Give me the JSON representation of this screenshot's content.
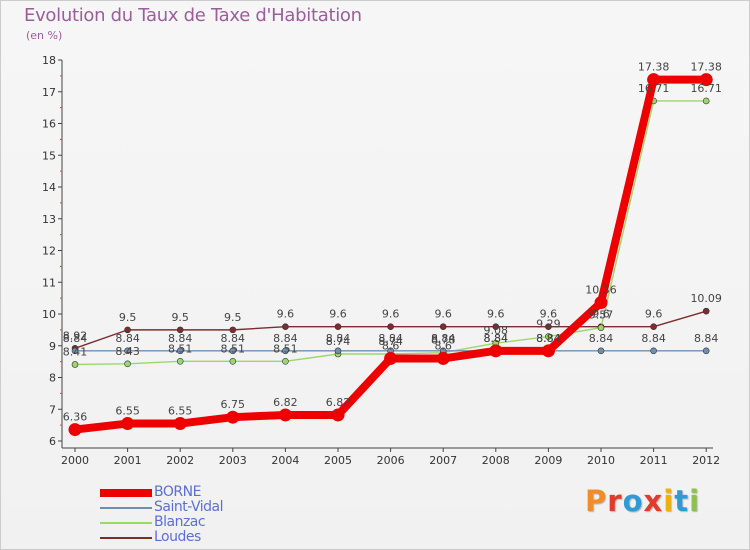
{
  "header": {
    "title": "Evolution du Taux de Taxe d'Habitation",
    "subtitle": "(en %)"
  },
  "logo": {
    "text": "Proxiti",
    "colors": [
      "#f28c28",
      "#e23b2e",
      "#2e9bd6",
      "#e23b2e",
      "#f2b100",
      "#2e9bd6",
      "#8bc34a"
    ]
  },
  "chart_data": {
    "type": "line",
    "title": "Evolution du Taux de Taxe d'Habitation",
    "ylabel": "(en %)",
    "xlabel": "",
    "ylim": [
      6,
      18
    ],
    "yticks": [
      6,
      7,
      8,
      9,
      10,
      11,
      12,
      13,
      14,
      15,
      16,
      17,
      18
    ],
    "categories": [
      "2000",
      "2001",
      "2002",
      "2003",
      "2004",
      "2005",
      "2006",
      "2007",
      "2008",
      "2009",
      "2010",
      "2011",
      "2012"
    ],
    "grid": false,
    "legend_position": "bottom-left",
    "series": [
      {
        "name": "Loudes",
        "color": "#7a2e2e",
        "style": "thin",
        "values": [
          8.92,
          9.5,
          9.5,
          9.5,
          9.6,
          9.6,
          9.6,
          9.6,
          9.6,
          9.6,
          9.6,
          9.6,
          10.09
        ],
        "labels": [
          "8.92",
          "9.5",
          "9.5",
          "9.5",
          "9.6",
          "9.6",
          "9.6",
          "9.6",
          "9.6",
          "9.6",
          "9.6",
          "9.6",
          "10.09"
        ]
      },
      {
        "name": "Blanzac",
        "color": "#9bd86a",
        "style": "thin",
        "values": [
          8.41,
          8.43,
          8.51,
          8.51,
          8.51,
          8.74,
          8.74,
          8.78,
          9.08,
          9.29,
          9.57,
          16.71,
          16.71
        ],
        "labels": [
          "8.41",
          "8.43",
          "8.51",
          "8.51",
          "8.51",
          "8.74",
          "8.74",
          "8.78",
          "9.08",
          "9.29",
          "9.57",
          "16.71",
          "16.71"
        ]
      },
      {
        "name": "Saint-Vidal",
        "color": "#6f8fb0",
        "style": "thin",
        "values": [
          8.84,
          8.84,
          8.84,
          8.84,
          8.84,
          8.84,
          8.84,
          8.84,
          8.84,
          8.84,
          8.84,
          8.84,
          8.84
        ],
        "labels": [
          "8.84",
          "8.84",
          "8.84",
          "8.84",
          "8.84",
          "8.84",
          "8.84",
          "8.84",
          "8.84",
          "8.84",
          "8.84",
          "8.84",
          "8.84"
        ]
      },
      {
        "name": "BORNE",
        "color": "#ee0000",
        "style": "thick",
        "values": [
          6.36,
          6.55,
          6.55,
          6.75,
          6.82,
          6.82,
          8.6,
          8.6,
          8.84,
          8.84,
          10.36,
          17.38,
          17.38
        ],
        "labels": [
          "6.36",
          "6.55",
          "6.55",
          "6.75",
          "6.82",
          "6.82",
          "8.6",
          "8.6",
          "8.84",
          "8.84",
          "10.36",
          "17.38",
          "17.38"
        ]
      }
    ],
    "legend": [
      "BORNE",
      "Saint-Vidal",
      "Blanzac",
      "Loudes"
    ]
  }
}
